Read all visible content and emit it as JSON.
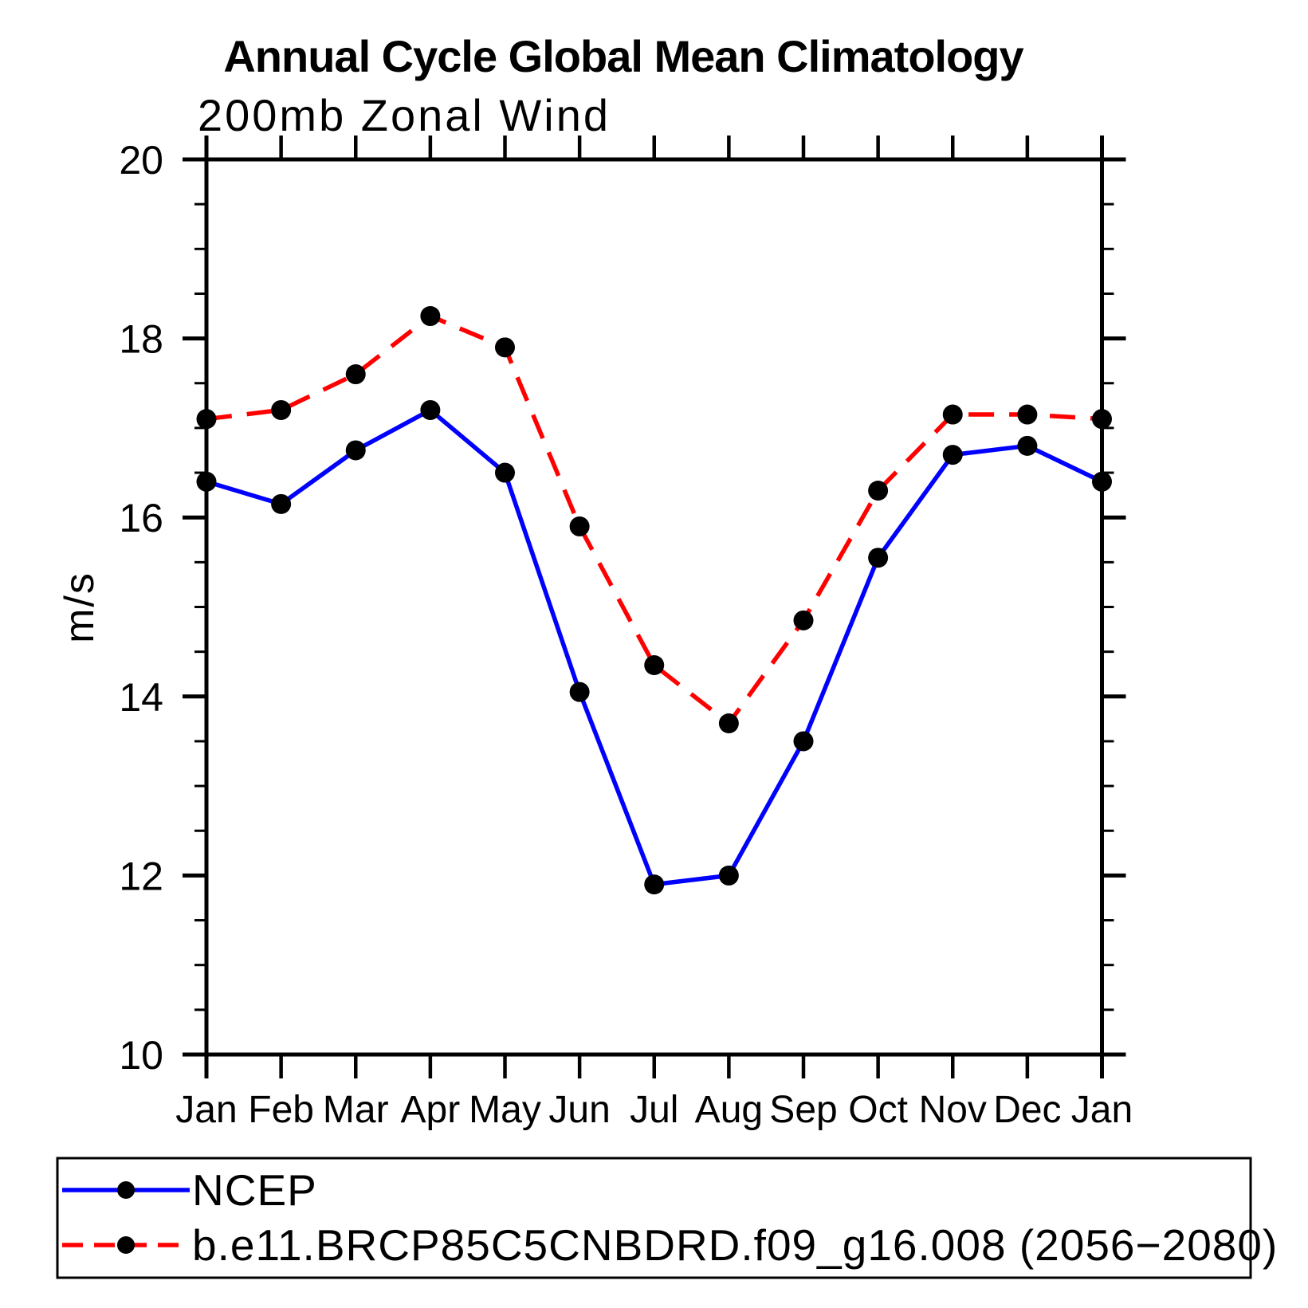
{
  "title": "Annual Cycle Global Mean Climatology",
  "subtitle": "200mb Zonal Wind",
  "ylabel": "m/s",
  "colors": {
    "ncep_line": "#0000ff",
    "model_line": "#ff0000",
    "marker": "#000000",
    "axis": "#000000",
    "background": "#ffffff"
  },
  "chart_data": {
    "type": "line",
    "categories": [
      "Jan",
      "Feb",
      "Mar",
      "Apr",
      "May",
      "Jun",
      "Jul",
      "Aug",
      "Sep",
      "Oct",
      "Nov",
      "Dec",
      "Jan"
    ],
    "series": [
      {
        "name": "NCEP",
        "color": "#0000ff",
        "line_style": "solid",
        "marker": "filled-circle",
        "marker_color": "#000000",
        "values": [
          16.4,
          16.15,
          16.75,
          17.2,
          16.5,
          14.05,
          11.9,
          12.0,
          13.5,
          15.55,
          16.7,
          16.8,
          16.4
        ]
      },
      {
        "name": "b.e11.BRCP85C5CNBDRD.f09_g16.008 (2056−2080)",
        "color": "#ff0000",
        "line_style": "dashed",
        "marker": "filled-circle",
        "marker_color": "#000000",
        "values": [
          17.1,
          17.2,
          17.6,
          18.25,
          17.9,
          15.9,
          14.35,
          13.7,
          14.85,
          16.3,
          17.15,
          17.15,
          17.1
        ]
      }
    ],
    "ylim": [
      10,
      20
    ],
    "yticks_major": [
      10,
      12,
      14,
      16,
      18,
      20
    ],
    "ytick_minor_step": 0.5,
    "xlabel": "",
    "ylabel": "m/s",
    "grid": "off",
    "legend_position": "bottom"
  },
  "legend": {
    "entries": [
      {
        "label": "NCEP"
      },
      {
        "label": "b.e11.BRCP85C5CNBDRD.f09_g16.008 (2056−2080)"
      }
    ]
  }
}
